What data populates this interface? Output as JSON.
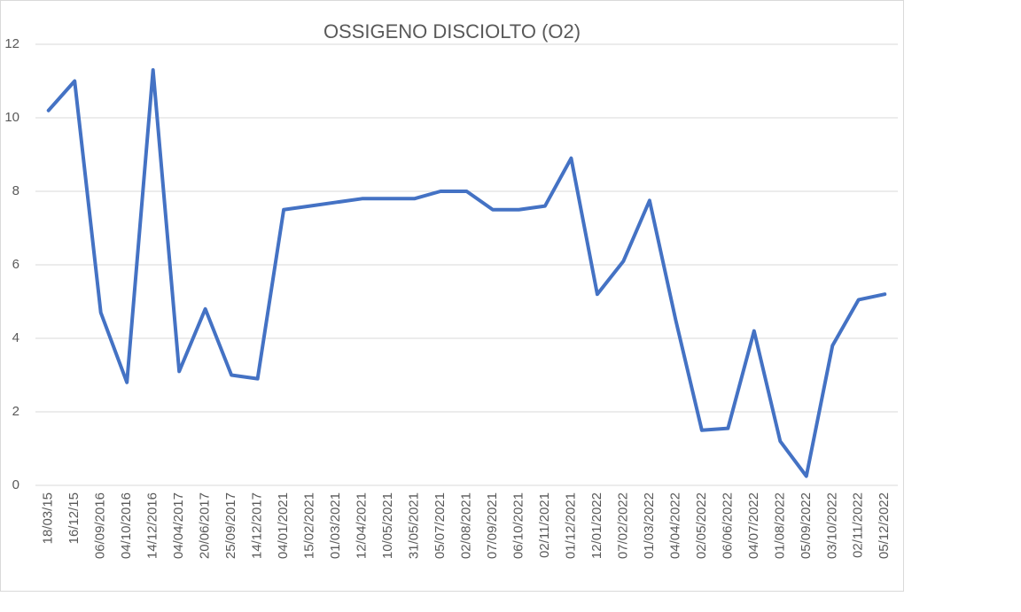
{
  "chart_data": {
    "type": "line",
    "title": "OSSIGENO DISCIOLTO (O2)",
    "categories": [
      "18/03/15",
      "16/12/15",
      "06/09/2016",
      "04/10/2016",
      "14/12/2016",
      "04/04/2017",
      "20/06/2017",
      "25/09/2017",
      "14/12/2017",
      "04/01/2021",
      "15/02/2021",
      "01/03/2021",
      "12/04/2021",
      "10/05/2021",
      "31/05/2021",
      "05/07/2021",
      "02/08/2021",
      "07/09/2021",
      "06/10/2021",
      "02/11/2021",
      "01/12/2021",
      "12/01/2022",
      "07/02/2022",
      "01/03/2022",
      "04/04/2022",
      "02/05/2022",
      "06/06/2022",
      "04/07/2022",
      "01/08/2022",
      "05/09/2022",
      "03/10/2022",
      "02/11/2022",
      "05/12/2022"
    ],
    "series": [
      {
        "color": "#4472c4",
        "values": [
          10.2,
          11,
          4.7,
          2.8,
          11.3,
          3.1,
          4.8,
          3.0,
          2.9,
          7.5,
          7.6,
          7.7,
          7.8,
          7.8,
          7.8,
          8.0,
          8.0,
          7.5,
          7.5,
          7.6,
          8.9,
          5.2,
          6.1,
          7.75,
          4.5,
          1.5,
          1.55,
          4.2,
          1.2,
          0.25,
          3.8,
          5.05,
          5.2
        ]
      }
    ],
    "ylim": [
      0,
      12
    ],
    "yticks": [
      0,
      2,
      4,
      6,
      8,
      10,
      12
    ],
    "grid": true
  }
}
